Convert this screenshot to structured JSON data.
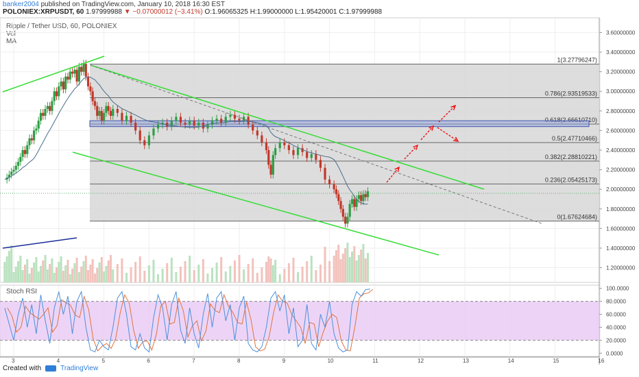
{
  "header": {
    "username": "banker2004",
    "published": "published on TradingView.com, January 10, 2018 16:30 EST",
    "symbol": "POLONIEX:XRPUSDT, 60",
    "price": "1.97999988",
    "change": "▼ −0.07000012 (−3.41%)",
    "ohlc": "O:1.96065325 H:1.99000000 L:1.95420001 C:1.97999988"
  },
  "legend": {
    "title": "Ripple / Tether USD, 60, POLONIEX",
    "vol": "Vol",
    "ma": "MA"
  },
  "footer": {
    "created_with": "Created with",
    "brand": "TradingView"
  },
  "colors": {
    "up": "#2e9e45",
    "down": "#c0392b",
    "trend": "#33dd33",
    "ma": "#4a6d8c",
    "fib_fill": "#d9d9d9",
    "rsi_band": "#e8c9f5",
    "rsi_k": "#4a90d9",
    "rsi_d": "#e0733c",
    "zone": "#4455aa",
    "arrow": "#ee1111"
  },
  "chart_data": {
    "type": "candlestick",
    "x_ticks": [
      "3",
      "4",
      "5",
      "6",
      "7",
      "8",
      "9",
      "10",
      "11",
      "12",
      "13",
      "14",
      "15",
      "16"
    ],
    "y_ticks": [
      "3.60000000",
      "3.40000000",
      "3.20000000",
      "3.00000000",
      "2.80000000",
      "2.60000000",
      "2.40000000",
      "2.20000000",
      "2.00000000",
      "1.80000000",
      "1.60000000",
      "1.40000000",
      "1.20000000"
    ],
    "ylim": [
      1.05,
      3.75
    ],
    "fib_levels": [
      {
        "ratio": "1",
        "label": "1(3.27796247)",
        "value": 3.27796247
      },
      {
        "ratio": "0.786",
        "label": "0.786(2.93519533)",
        "value": 2.93519533
      },
      {
        "ratio": "0.618",
        "label": "0.618(2.66610710)",
        "value": 2.6661071
      },
      {
        "ratio": "0.5",
        "label": "0.5(2.47710466)",
        "value": 2.47710466
      },
      {
        "ratio": "0.382",
        "label": "0.382(2.28810221)",
        "value": 2.28810221
      },
      {
        "ratio": "0.236",
        "label": "0.236(2.05425173)",
        "value": 2.05425173
      },
      {
        "ratio": "0",
        "label": "0(1.67624684)",
        "value": 1.67624684
      }
    ],
    "price_path": [
      [
        2.8,
        2.1
      ],
      [
        2.85,
        2.12
      ],
      [
        2.9,
        2.15
      ],
      [
        2.95,
        2.18
      ],
      [
        3.0,
        2.2
      ],
      [
        3.05,
        2.24
      ],
      [
        3.1,
        2.28
      ],
      [
        3.15,
        2.33
      ],
      [
        3.2,
        2.4
      ],
      [
        3.25,
        2.36
      ],
      [
        3.3,
        2.45
      ],
      [
        3.35,
        2.52
      ],
      [
        3.4,
        2.5
      ],
      [
        3.45,
        2.6
      ],
      [
        3.5,
        2.62
      ],
      [
        3.55,
        2.7
      ],
      [
        3.6,
        2.78
      ],
      [
        3.65,
        2.75
      ],
      [
        3.7,
        2.82
      ],
      [
        3.75,
        2.85
      ],
      [
        3.8,
        2.8
      ],
      [
        3.85,
        2.9
      ],
      [
        3.9,
        3.0
      ],
      [
        3.95,
        2.95
      ],
      [
        4.0,
        3.05
      ],
      [
        4.05,
        3.1
      ],
      [
        4.1,
        3.02
      ],
      [
        4.15,
        3.15
      ],
      [
        4.2,
        3.12
      ],
      [
        4.25,
        3.2
      ],
      [
        4.3,
        3.18
      ],
      [
        4.35,
        3.22
      ],
      [
        4.4,
        3.1
      ],
      [
        4.45,
        3.25
      ],
      [
        4.5,
        3.2
      ],
      [
        4.55,
        3.28
      ],
      [
        4.6,
        3.15
      ],
      [
        4.65,
        3.05
      ],
      [
        4.7,
        3.0
      ],
      [
        4.75,
        2.9
      ],
      [
        4.8,
        2.85
      ],
      [
        4.85,
        2.75
      ],
      [
        4.9,
        2.8
      ],
      [
        4.95,
        2.7
      ],
      [
        5.0,
        2.78
      ],
      [
        5.05,
        2.85
      ],
      [
        5.1,
        2.8
      ],
      [
        5.15,
        2.75
      ],
      [
        5.2,
        2.82
      ],
      [
        5.3,
        2.78
      ],
      [
        5.4,
        2.7
      ],
      [
        5.5,
        2.75
      ],
      [
        5.6,
        2.68
      ],
      [
        5.7,
        2.6
      ],
      [
        5.8,
        2.5
      ],
      [
        5.9,
        2.45
      ],
      [
        6.0,
        2.55
      ],
      [
        6.1,
        2.62
      ],
      [
        6.2,
        2.66
      ],
      [
        6.3,
        2.68
      ],
      [
        6.4,
        2.64
      ],
      [
        6.5,
        2.7
      ],
      [
        6.6,
        2.74
      ],
      [
        6.7,
        2.68
      ],
      [
        6.8,
        2.66
      ],
      [
        6.9,
        2.7
      ],
      [
        7.0,
        2.65
      ],
      [
        7.1,
        2.68
      ],
      [
        7.2,
        2.62
      ],
      [
        7.3,
        2.66
      ],
      [
        7.4,
        2.7
      ],
      [
        7.5,
        2.72
      ],
      [
        7.6,
        2.68
      ],
      [
        7.7,
        2.74
      ],
      [
        7.8,
        2.76
      ],
      [
        7.9,
        2.72
      ],
      [
        8.0,
        2.7
      ],
      [
        8.1,
        2.74
      ],
      [
        8.2,
        2.66
      ],
      [
        8.3,
        2.6
      ],
      [
        8.4,
        2.55
      ],
      [
        8.5,
        2.48
      ],
      [
        8.6,
        2.4
      ],
      [
        8.65,
        2.25
      ],
      [
        8.7,
        2.15
      ],
      [
        8.75,
        2.35
      ],
      [
        8.8,
        2.42
      ],
      [
        8.9,
        2.48
      ],
      [
        9.0,
        2.45
      ],
      [
        9.1,
        2.4
      ],
      [
        9.2,
        2.35
      ],
      [
        9.3,
        2.42
      ],
      [
        9.4,
        2.38
      ],
      [
        9.5,
        2.32
      ],
      [
        9.6,
        2.36
      ],
      [
        9.7,
        2.3
      ],
      [
        9.8,
        2.22
      ],
      [
        9.9,
        2.1
      ],
      [
        10.0,
        2.05
      ],
      [
        10.1,
        2.0
      ],
      [
        10.15,
        1.95
      ],
      [
        10.2,
        1.88
      ],
      [
        10.25,
        1.8
      ],
      [
        10.3,
        1.72
      ],
      [
        10.35,
        1.65
      ],
      [
        10.4,
        1.72
      ],
      [
        10.45,
        1.85
      ],
      [
        10.5,
        1.9
      ],
      [
        10.55,
        1.82
      ],
      [
        10.6,
        1.9
      ],
      [
        10.65,
        1.94
      ],
      [
        10.7,
        1.88
      ],
      [
        10.75,
        1.95
      ],
      [
        10.8,
        1.92
      ],
      [
        10.85,
        1.98
      ]
    ],
    "rsi_ylim": [
      -5,
      105
    ],
    "rsi_ticks": [
      "100.0000",
      "80.0000",
      "60.0000",
      "40.0000",
      "20.0000",
      "0.0000"
    ],
    "rsi_band": [
      20,
      80
    ],
    "rsi_path": [
      [
        2.8,
        70
      ],
      [
        2.9,
        45
      ],
      [
        3.0,
        20
      ],
      [
        3.1,
        60
      ],
      [
        3.2,
        85
      ],
      [
        3.3,
        40
      ],
      [
        3.4,
        75
      ],
      [
        3.5,
        30
      ],
      [
        3.6,
        90
      ],
      [
        3.7,
        50
      ],
      [
        3.8,
        15
      ],
      [
        3.9,
        70
      ],
      [
        4.0,
        95
      ],
      [
        4.1,
        60
      ],
      [
        4.2,
        88
      ],
      [
        4.3,
        30
      ],
      [
        4.4,
        80
      ],
      [
        4.5,
        95
      ],
      [
        4.6,
        40
      ],
      [
        4.7,
        5
      ],
      [
        4.8,
        2
      ],
      [
        4.9,
        20
      ],
      [
        5.0,
        10
      ],
      [
        5.1,
        5
      ],
      [
        5.2,
        40
      ],
      [
        5.3,
        85
      ],
      [
        5.4,
        95
      ],
      [
        5.5,
        60
      ],
      [
        5.6,
        10
      ],
      [
        5.7,
        5
      ],
      [
        5.8,
        30
      ],
      [
        5.9,
        8
      ],
      [
        6.0,
        2
      ],
      [
        6.1,
        55
      ],
      [
        6.2,
        90
      ],
      [
        6.3,
        70
      ],
      [
        6.4,
        20
      ],
      [
        6.5,
        75
      ],
      [
        6.6,
        95
      ],
      [
        6.7,
        35
      ],
      [
        6.8,
        15
      ],
      [
        6.9,
        70
      ],
      [
        7.0,
        30
      ],
      [
        7.1,
        8
      ],
      [
        7.2,
        60
      ],
      [
        7.3,
        92
      ],
      [
        7.4,
        40
      ],
      [
        7.5,
        85
      ],
      [
        7.6,
        95
      ],
      [
        7.7,
        50
      ],
      [
        7.8,
        75
      ],
      [
        7.9,
        20
      ],
      [
        8.0,
        70
      ],
      [
        8.1,
        88
      ],
      [
        8.2,
        15
      ],
      [
        8.3,
        5
      ],
      [
        8.4,
        2
      ],
      [
        8.5,
        10
      ],
      [
        8.6,
        40
      ],
      [
        8.7,
        85
      ],
      [
        8.8,
        95
      ],
      [
        8.9,
        65
      ],
      [
        9.0,
        90
      ],
      [
        9.1,
        30
      ],
      [
        9.2,
        70
      ],
      [
        9.3,
        10
      ],
      [
        9.4,
        20
      ],
      [
        9.5,
        75
      ],
      [
        9.6,
        15
      ],
      [
        9.7,
        5
      ],
      [
        9.8,
        60
      ],
      [
        9.9,
        40
      ],
      [
        10.0,
        80
      ],
      [
        10.1,
        30
      ],
      [
        10.2,
        8
      ],
      [
        10.3,
        2
      ],
      [
        10.4,
        5
      ],
      [
        10.5,
        75
      ],
      [
        10.6,
        95
      ],
      [
        10.7,
        88
      ],
      [
        10.8,
        98
      ],
      [
        10.9,
        99
      ]
    ]
  }
}
